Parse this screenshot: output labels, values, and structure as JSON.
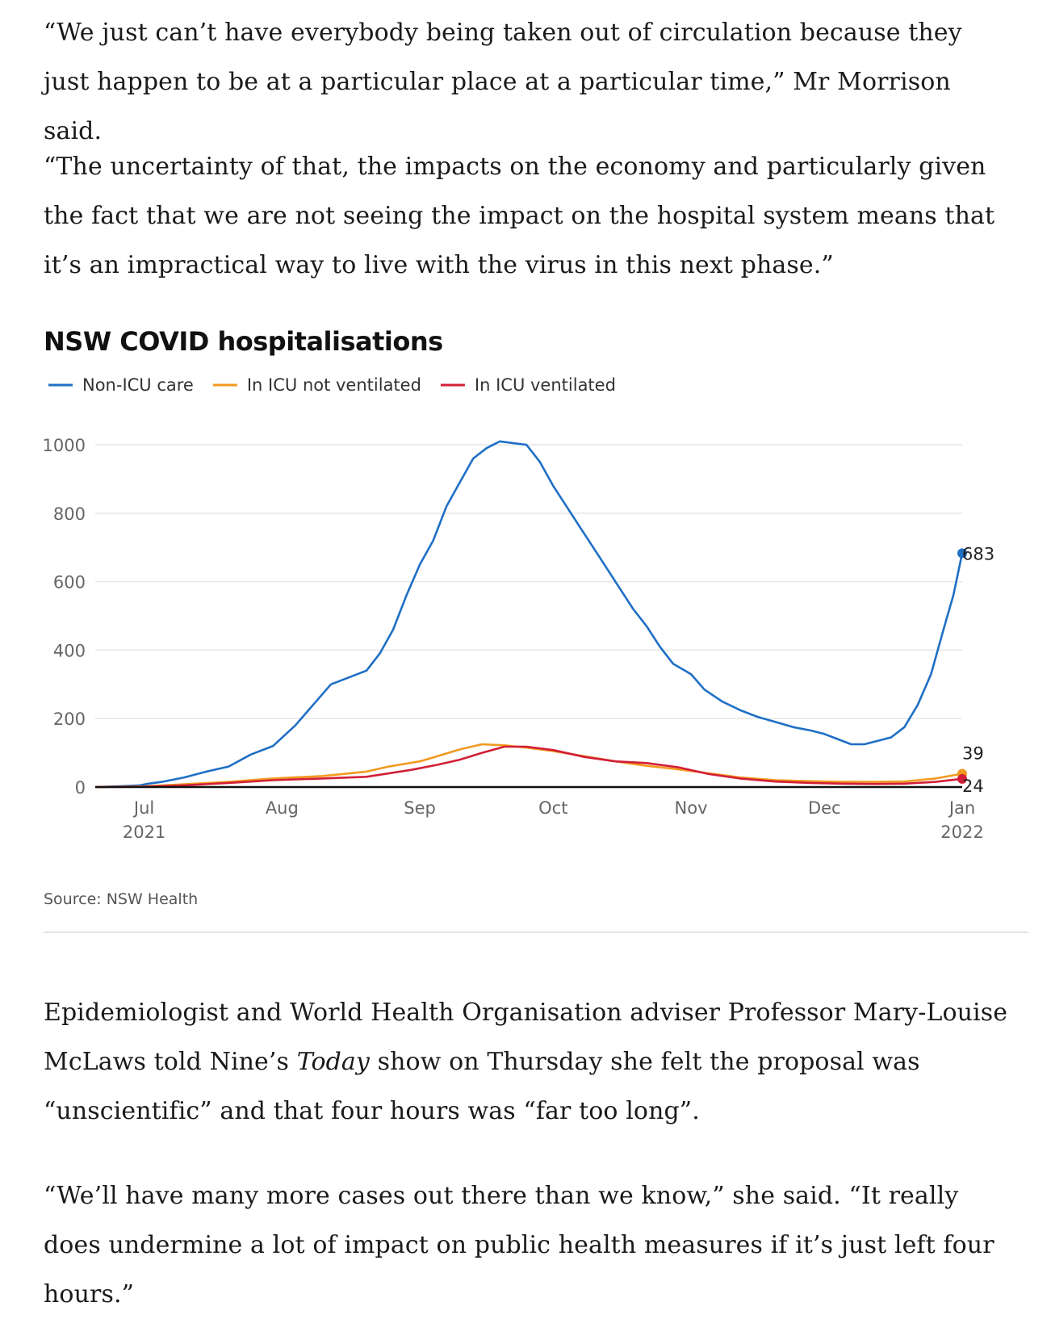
{
  "article": {
    "p1": "“We just can’t have everybody being taken out of circulation because they just happen to be at a particular place at a particular time,” Mr Morrison said.",
    "p2": "“The uncertainty of that, the impacts on the economy and particularly given the fact that we are not seeing the impact on the hospital system means that it’s an impractical way to live with the virus in this next phase.”",
    "p3_before": "Epidemiologist and World Health Organisation adviser Professor Mary-Louise McLaws told Nine’s ",
    "p3_italic": "Today",
    "p3_after": " show on Thursday she felt the proposal was “unscientific” and that four hours was “far too long”.",
    "p4": "“We’ll have many more cases out there than we know,” she said. “It really does undermine a lot of impact on public health measures if it’s just left four hours.”"
  },
  "chart_data": {
    "type": "line",
    "title": "NSW COVID hospitalisations",
    "source": "Source: NSW Health",
    "xlabel": "",
    "ylabel": "",
    "ylim": [
      0,
      1000
    ],
    "yticks": [
      0,
      200,
      400,
      600,
      800,
      1000
    ],
    "xlim": [
      "2021-06-20",
      "2022-01-01"
    ],
    "xticks": [
      {
        "date": "2021-07-01",
        "label": "Jul",
        "sublabel": "2021"
      },
      {
        "date": "2021-08-01",
        "label": "Aug",
        "sublabel": ""
      },
      {
        "date": "2021-09-01",
        "label": "Sep",
        "sublabel": ""
      },
      {
        "date": "2021-10-01",
        "label": "Oct",
        "sublabel": ""
      },
      {
        "date": "2021-11-01",
        "label": "Nov",
        "sublabel": ""
      },
      {
        "date": "2021-12-01",
        "label": "Dec",
        "sublabel": ""
      },
      {
        "date": "2022-01-01",
        "label": "Jan",
        "sublabel": "2022"
      }
    ],
    "grid": true,
    "legend_position": "top-left",
    "series": [
      {
        "name": "Non-ICU care",
        "color": "#1f6fc5",
        "end_label": "683",
        "points": [
          [
            "2021-06-20",
            0
          ],
          [
            "2021-06-25",
            2
          ],
          [
            "2021-06-30",
            5
          ],
          [
            "2021-07-02",
            10
          ],
          [
            "2021-07-05",
            15
          ],
          [
            "2021-07-10",
            28
          ],
          [
            "2021-07-15",
            45
          ],
          [
            "2021-07-20",
            60
          ],
          [
            "2021-07-25",
            95
          ],
          [
            "2021-07-30",
            120
          ],
          [
            "2021-08-04",
            180
          ],
          [
            "2021-08-08",
            240
          ],
          [
            "2021-08-12",
            300
          ],
          [
            "2021-08-16",
            320
          ],
          [
            "2021-08-20",
            340
          ],
          [
            "2021-08-23",
            390
          ],
          [
            "2021-08-26",
            460
          ],
          [
            "2021-08-29",
            560
          ],
          [
            "2021-09-01",
            650
          ],
          [
            "2021-09-04",
            720
          ],
          [
            "2021-09-07",
            820
          ],
          [
            "2021-09-10",
            890
          ],
          [
            "2021-09-13",
            960
          ],
          [
            "2021-09-16",
            990
          ],
          [
            "2021-09-19",
            1010
          ],
          [
            "2021-09-22",
            1005
          ],
          [
            "2021-09-25",
            1000
          ],
          [
            "2021-09-28",
            950
          ],
          [
            "2021-10-01",
            880
          ],
          [
            "2021-10-04",
            820
          ],
          [
            "2021-10-07",
            760
          ],
          [
            "2021-10-10",
            700
          ],
          [
            "2021-10-13",
            640
          ],
          [
            "2021-10-16",
            580
          ],
          [
            "2021-10-19",
            520
          ],
          [
            "2021-10-22",
            470
          ],
          [
            "2021-10-25",
            410
          ],
          [
            "2021-10-28",
            360
          ],
          [
            "2021-11-01",
            330
          ],
          [
            "2021-11-04",
            285
          ],
          [
            "2021-11-08",
            250
          ],
          [
            "2021-11-12",
            225
          ],
          [
            "2021-11-16",
            205
          ],
          [
            "2021-11-20",
            190
          ],
          [
            "2021-11-24",
            175
          ],
          [
            "2021-11-28",
            165
          ],
          [
            "2021-12-01",
            155
          ],
          [
            "2021-12-04",
            140
          ],
          [
            "2021-12-07",
            125
          ],
          [
            "2021-12-10",
            125
          ],
          [
            "2021-12-13",
            135
          ],
          [
            "2021-12-16",
            145
          ],
          [
            "2021-12-19",
            175
          ],
          [
            "2021-12-22",
            240
          ],
          [
            "2021-12-25",
            330
          ],
          [
            "2021-12-28",
            470
          ],
          [
            "2021-12-30",
            560
          ],
          [
            "2022-01-01",
            683
          ]
        ]
      },
      {
        "name": "In ICU not ventilated",
        "color": "#f29a1f",
        "end_label": "39",
        "points": [
          [
            "2021-06-20",
            0
          ],
          [
            "2021-07-01",
            2
          ],
          [
            "2021-07-10",
            8
          ],
          [
            "2021-07-20",
            15
          ],
          [
            "2021-07-30",
            25
          ],
          [
            "2021-08-10",
            32
          ],
          [
            "2021-08-20",
            45
          ],
          [
            "2021-08-25",
            60
          ],
          [
            "2021-09-01",
            75
          ],
          [
            "2021-09-05",
            90
          ],
          [
            "2021-09-10",
            110
          ],
          [
            "2021-09-15",
            125
          ],
          [
            "2021-09-20",
            122
          ],
          [
            "2021-09-25",
            115
          ],
          [
            "2021-10-01",
            105
          ],
          [
            "2021-10-08",
            90
          ],
          [
            "2021-10-15",
            75
          ],
          [
            "2021-10-22",
            62
          ],
          [
            "2021-10-29",
            52
          ],
          [
            "2021-11-05",
            40
          ],
          [
            "2021-11-12",
            28
          ],
          [
            "2021-11-20",
            20
          ],
          [
            "2021-11-28",
            17
          ],
          [
            "2021-12-05",
            15
          ],
          [
            "2021-12-12",
            15
          ],
          [
            "2021-12-19",
            16
          ],
          [
            "2021-12-26",
            25
          ],
          [
            "2022-01-01",
            39
          ]
        ]
      },
      {
        "name": "In ICU ventilated",
        "color": "#d21f37",
        "end_label": "24",
        "points": [
          [
            "2021-06-20",
            0
          ],
          [
            "2021-07-01",
            1
          ],
          [
            "2021-07-10",
            5
          ],
          [
            "2021-07-20",
            12
          ],
          [
            "2021-07-30",
            20
          ],
          [
            "2021-08-10",
            25
          ],
          [
            "2021-08-20",
            30
          ],
          [
            "2021-08-30",
            50
          ],
          [
            "2021-09-05",
            65
          ],
          [
            "2021-09-10",
            80
          ],
          [
            "2021-09-15",
            100
          ],
          [
            "2021-09-20",
            118
          ],
          [
            "2021-09-25",
            118
          ],
          [
            "2021-10-01",
            108
          ],
          [
            "2021-10-08",
            88
          ],
          [
            "2021-10-15",
            75
          ],
          [
            "2021-10-22",
            70
          ],
          [
            "2021-10-29",
            58
          ],
          [
            "2021-11-05",
            38
          ],
          [
            "2021-11-12",
            25
          ],
          [
            "2021-11-20",
            16
          ],
          [
            "2021-11-28",
            12
          ],
          [
            "2021-12-05",
            10
          ],
          [
            "2021-12-12",
            9
          ],
          [
            "2021-12-19",
            10
          ],
          [
            "2021-12-26",
            15
          ],
          [
            "2022-01-01",
            24
          ]
        ]
      }
    ]
  }
}
